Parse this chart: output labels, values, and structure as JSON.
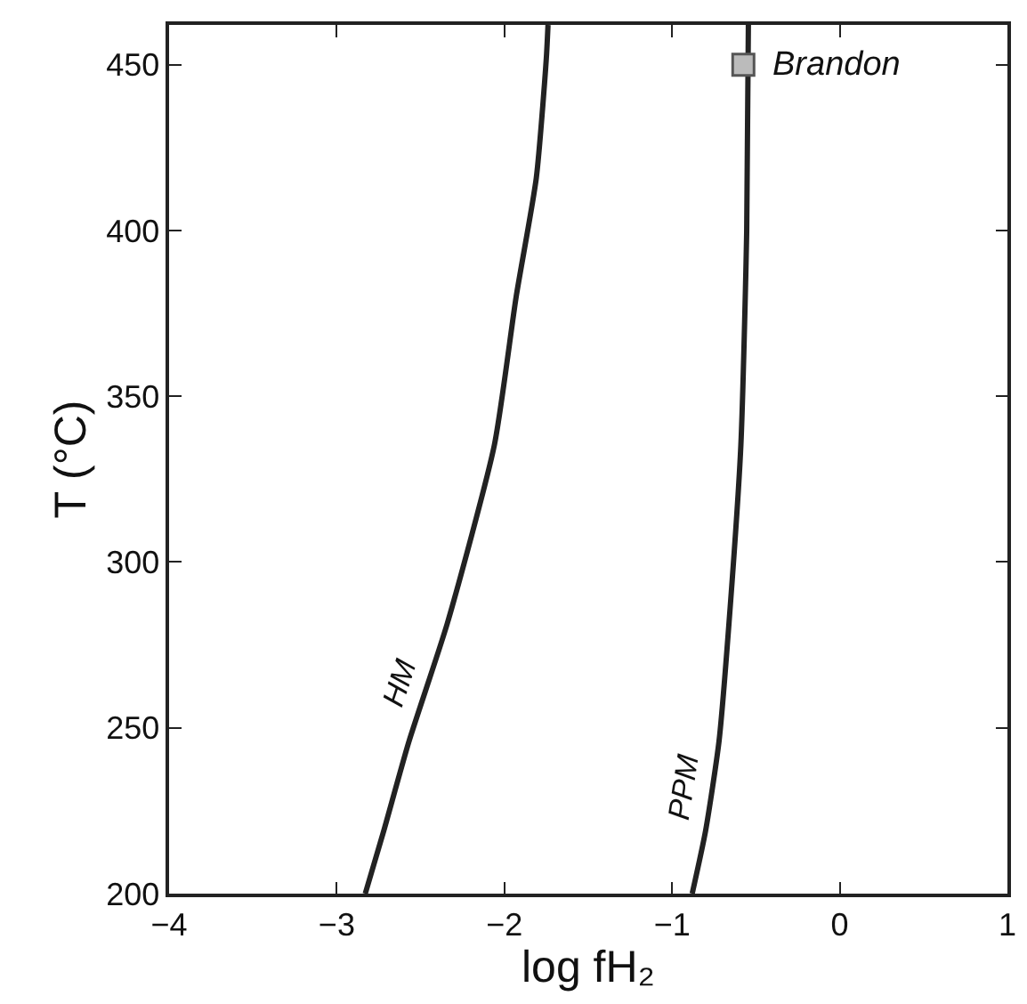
{
  "chart_data": {
    "type": "line",
    "xlabel": "log fH₂",
    "ylabel": "T (°C)",
    "xlim": [
      -4,
      1
    ],
    "xticks": [
      -4,
      -3,
      -2,
      -1,
      0,
      1
    ],
    "ylim": [
      200,
      462
    ],
    "yticks": [
      200,
      250,
      300,
      350,
      400,
      450
    ],
    "annotations": [
      {
        "text": "Brandon",
        "x": -0.575,
        "y": 450
      }
    ],
    "line_style": "solid",
    "marker": "none",
    "series": [
      {
        "name": "HM",
        "color": "#222222",
        "x": [
          -2.83,
          -2.72,
          -2.57,
          -2.34,
          -2.06,
          -1.93,
          -1.81,
          -1.75,
          -1.74
        ],
        "values": [
          200,
          218.9,
          245.8,
          281.6,
          335.3,
          380,
          415.8,
          452,
          462
        ]
      },
      {
        "name": "PPM",
        "color": "#222222",
        "x": [
          -0.88,
          -0.8,
          -0.72,
          -0.66,
          -0.59,
          -0.555,
          -0.545
        ],
        "values": [
          200,
          219,
          246,
          282,
          335,
          400,
          462
        ]
      },
      {
        "type": "scatter",
        "color": "#bbbbbb",
        "marker": "square",
        "x": [
          -0.575
        ],
        "values": [
          450
        ]
      }
    ]
  }
}
